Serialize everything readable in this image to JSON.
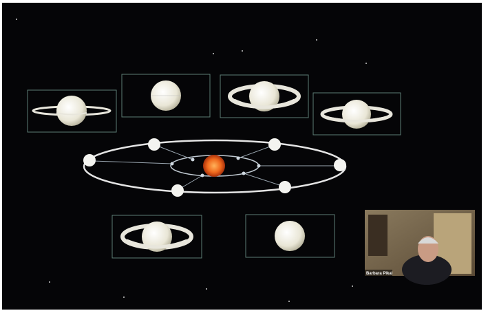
{
  "video_tile": {
    "participant_name": "Barbara Pikal"
  }
}
